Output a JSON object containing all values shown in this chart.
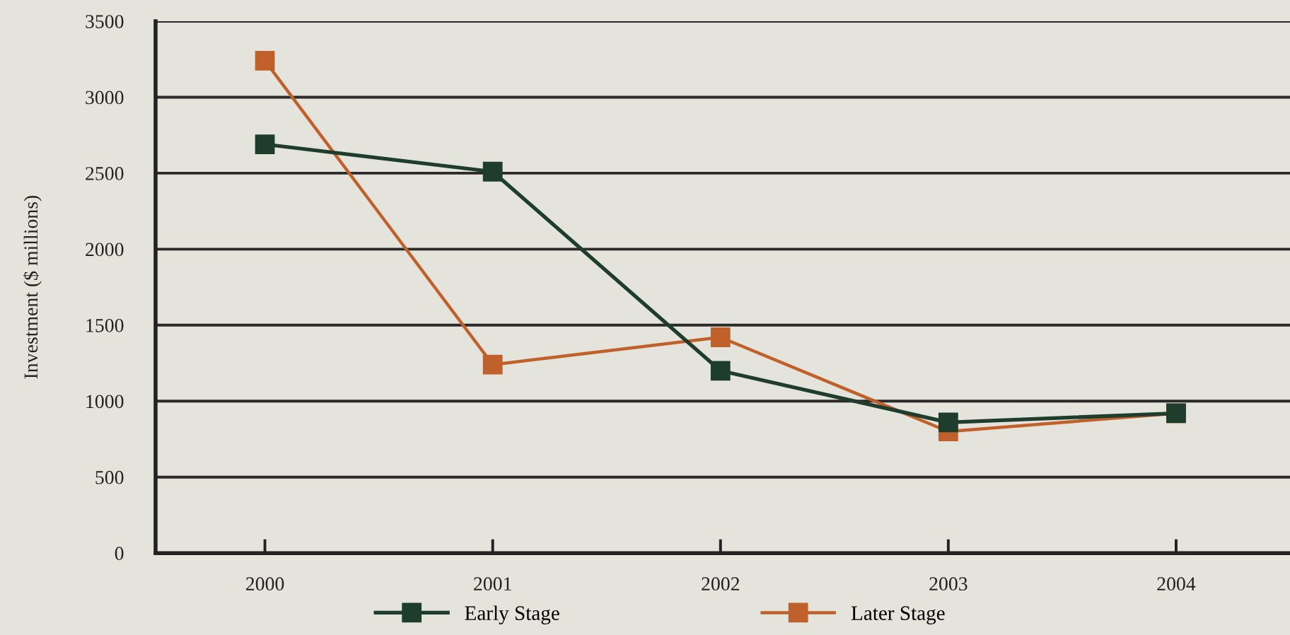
{
  "chart_data": {
    "type": "line",
    "ylabel": "Investment ($ millions)",
    "categories": [
      "2000",
      "2001",
      "2002",
      "2003",
      "2004"
    ],
    "series": [
      {
        "name": "Early Stage",
        "color": "#1f3d2c",
        "values": [
          2690,
          2510,
          1200,
          860,
          920
        ]
      },
      {
        "name": "Later Stage",
        "color": "#c0602a",
        "values": [
          3240,
          1240,
          1420,
          800,
          920
        ]
      }
    ],
    "ylim": [
      0,
      3500
    ],
    "yticks": [
      0,
      500,
      1000,
      1500,
      2000,
      2500,
      3000,
      3500
    ],
    "grid": "y",
    "legend": "bottom",
    "marker": "square",
    "line_style": "solid"
  }
}
